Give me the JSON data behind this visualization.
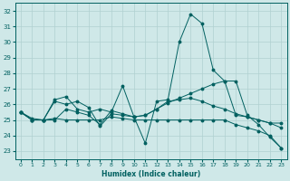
{
  "xlabel": "Humidex (Indice chaleur)",
  "ylabel": "",
  "xlim": [
    -0.5,
    23.5
  ],
  "ylim": [
    22.5,
    32.5
  ],
  "yticks": [
    23,
    24,
    25,
    26,
    27,
    28,
    29,
    30,
    31,
    32
  ],
  "xticks": [
    0,
    1,
    2,
    3,
    4,
    5,
    6,
    7,
    8,
    9,
    10,
    11,
    12,
    13,
    14,
    15,
    16,
    17,
    18,
    19,
    20,
    21,
    22,
    23
  ],
  "bg_color": "#cfe8e8",
  "grid_color": "#b0d0d0",
  "line_color": "#006060",
  "lines": [
    {
      "x": [
        0,
        1,
        2,
        3,
        4,
        5,
        6,
        7,
        8,
        9,
        10,
        11,
        12,
        13,
        14,
        15,
        16,
        17,
        18,
        19,
        20,
        21,
        22,
        23
      ],
      "y": [
        25.5,
        25.0,
        25.0,
        26.3,
        26.5,
        25.7,
        25.5,
        25.7,
        25.5,
        27.2,
        25.2,
        23.5,
        26.2,
        26.3,
        30.0,
        31.8,
        31.2,
        28.2,
        27.5,
        27.5,
        25.3,
        24.7,
        23.9,
        23.2
      ]
    },
    {
      "x": [
        0,
        1,
        2,
        3,
        4,
        5,
        6,
        7,
        8,
        9,
        10,
        11,
        12,
        13,
        14,
        15,
        16,
        17,
        18,
        19,
        20,
        21,
        22,
        23
      ],
      "y": [
        25.5,
        25.0,
        25.0,
        26.2,
        26.0,
        26.2,
        25.8,
        24.6,
        25.4,
        25.3,
        25.2,
        25.3,
        25.7,
        26.1,
        26.4,
        26.7,
        27.0,
        27.3,
        27.5,
        25.3,
        25.2,
        25.0,
        24.8,
        24.5
      ]
    },
    {
      "x": [
        0,
        1,
        2,
        3,
        4,
        5,
        6,
        7,
        8,
        9,
        10,
        11,
        12,
        13,
        14,
        15,
        16,
        17,
        18,
        19,
        20,
        21,
        22,
        23
      ],
      "y": [
        25.5,
        25.1,
        25.0,
        25.1,
        25.0,
        25.0,
        25.0,
        25.0,
        25.2,
        25.1,
        25.0,
        25.0,
        25.0,
        25.0,
        25.0,
        25.0,
        25.0,
        25.0,
        25.0,
        24.7,
        24.5,
        24.3,
        24.0,
        23.2
      ]
    },
    {
      "x": [
        0,
        1,
        2,
        3,
        4,
        5,
        6,
        7,
        8,
        9,
        10,
        11,
        12,
        13,
        14,
        15,
        16,
        17,
        18,
        19,
        20,
        21,
        22,
        23
      ],
      "y": [
        25.5,
        25.0,
        25.0,
        25.0,
        25.7,
        25.5,
        25.3,
        24.7,
        25.6,
        25.4,
        25.2,
        25.3,
        25.7,
        26.2,
        26.3,
        26.4,
        26.2,
        25.9,
        25.7,
        25.4,
        25.2,
        25.0,
        24.8,
        24.8
      ]
    }
  ]
}
